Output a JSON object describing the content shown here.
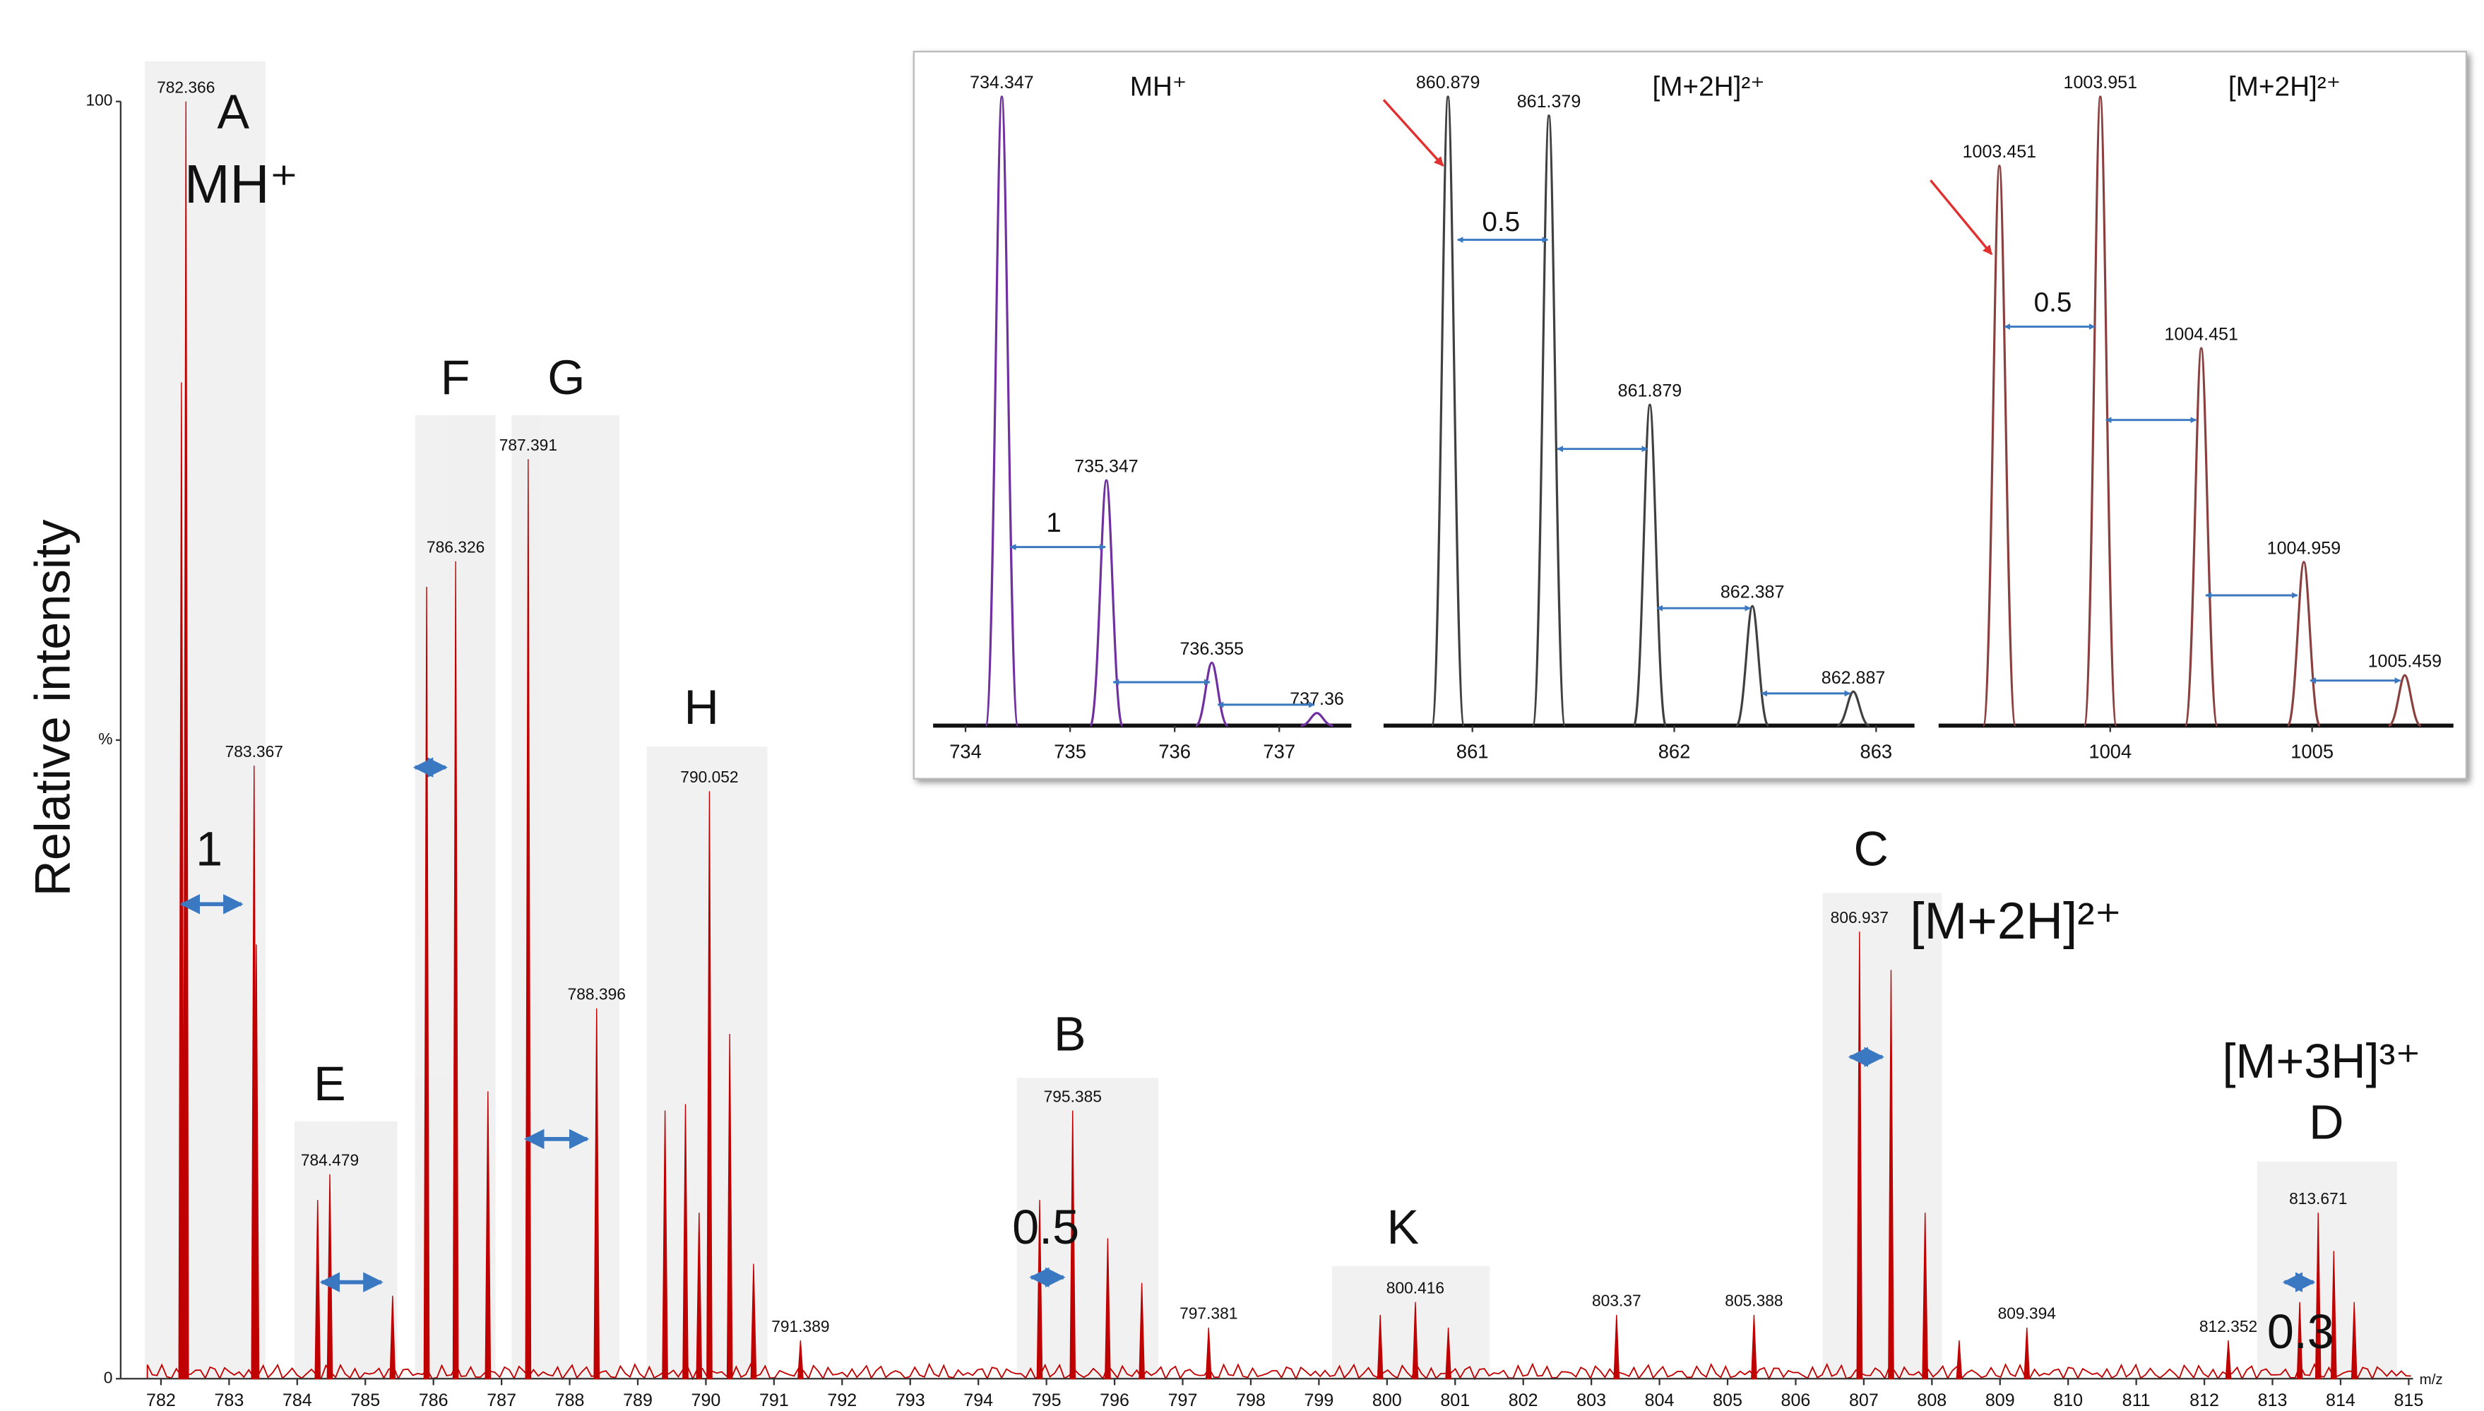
{
  "chart_data": [
    {
      "type": "spectrum",
      "ylabel": "Relative intensity",
      "xlabel": "m/z",
      "xlim": [
        781.8,
        815.3
      ],
      "ylim": [
        0,
        100
      ],
      "xticks": [
        782,
        783,
        784,
        785,
        786,
        787,
        788,
        789,
        790,
        791,
        792,
        793,
        794,
        795,
        796,
        797,
        798,
        799,
        800,
        801,
        802,
        803,
        804,
        805,
        806,
        807,
        808,
        809,
        810,
        811,
        812,
        813,
        814,
        815
      ],
      "yticks": [
        0,
        {
          "value": 50,
          "label": "%"
        },
        100
      ],
      "color": "#c00000",
      "series": [
        {
          "labeled": true,
          "x": [
            782.366,
            783.367,
            784.479,
            786.326,
            787.391,
            788.396,
            790.052,
            791.389,
            795.385,
            797.381,
            800.416,
            803.37,
            805.388,
            806.937,
            809.394,
            812.352,
            813.671
          ],
          "values": [
            100,
            48,
            16,
            64,
            72,
            29,
            46,
            3,
            21,
            4,
            6,
            5,
            5,
            35,
            4,
            3,
            13
          ]
        },
        {
          "labeled": false,
          "x": [
            782.3,
            783.4,
            784.3,
            785.4,
            785.9,
            786.8,
            789.4,
            789.7,
            789.9,
            790.35,
            790.7,
            794.9,
            795.9,
            796.4,
            799.9,
            800.9,
            807.4,
            807.9,
            808.4,
            813.4,
            813.9,
            814.2
          ],
          "values": [
            78,
            34,
            14,
            6.5,
            62,
            22.5,
            21,
            21.5,
            13,
            27,
            9,
            14,
            11,
            7.5,
            5,
            4,
            32,
            13,
            3,
            6,
            10,
            6
          ]
        }
      ],
      "annotations": [
        "A",
        "MH⁺",
        "1",
        "E",
        "F",
        "G",
        "H",
        "B",
        "0.5",
        "K",
        "C",
        "[M+2H]²⁺",
        "[M+3H]³⁺",
        "D",
        "0.3"
      ]
    },
    {
      "type": "spectrum",
      "title": "MH⁺",
      "xlim": [
        733.69,
        737.69
      ],
      "ylim": [
        0,
        100
      ],
      "xticks": [
        734,
        735,
        736,
        737
      ],
      "color": "#7030a0",
      "series": [
        {
          "labeled": true,
          "x": [
            734.347,
            735.347,
            736.355,
            737.36
          ],
          "values": [
            100,
            39,
            10,
            2
          ]
        }
      ],
      "annotations": [
        "1"
      ]
    },
    {
      "type": "spectrum",
      "title": "[M+2H]²⁺",
      "xlim": [
        860.56,
        863.19
      ],
      "ylim": [
        0,
        100
      ],
      "xticks": [
        861,
        862,
        863
      ],
      "color": "#404040",
      "series": [
        {
          "labeled": true,
          "x": [
            860.879,
            861.379,
            861.879,
            862.387,
            862.887
          ],
          "values": [
            100,
            97,
            51,
            19,
            5.4
          ]
        }
      ],
      "annotations": [
        "0.5"
      ]
    },
    {
      "type": "spectrum",
      "title": "[M+2H]²⁺",
      "xlim": [
        1003.15,
        1005.7
      ],
      "ylim": [
        0,
        100
      ],
      "xticks": [
        1004,
        1005
      ],
      "color": "#8b4040",
      "series": [
        {
          "labeled": true,
          "x": [
            1003.451,
            1003.951,
            1004.451,
            1004.959,
            1005.459
          ],
          "values": [
            89,
            100,
            60,
            26,
            8
          ]
        }
      ],
      "annotations": [
        "0.5"
      ]
    }
  ]
}
